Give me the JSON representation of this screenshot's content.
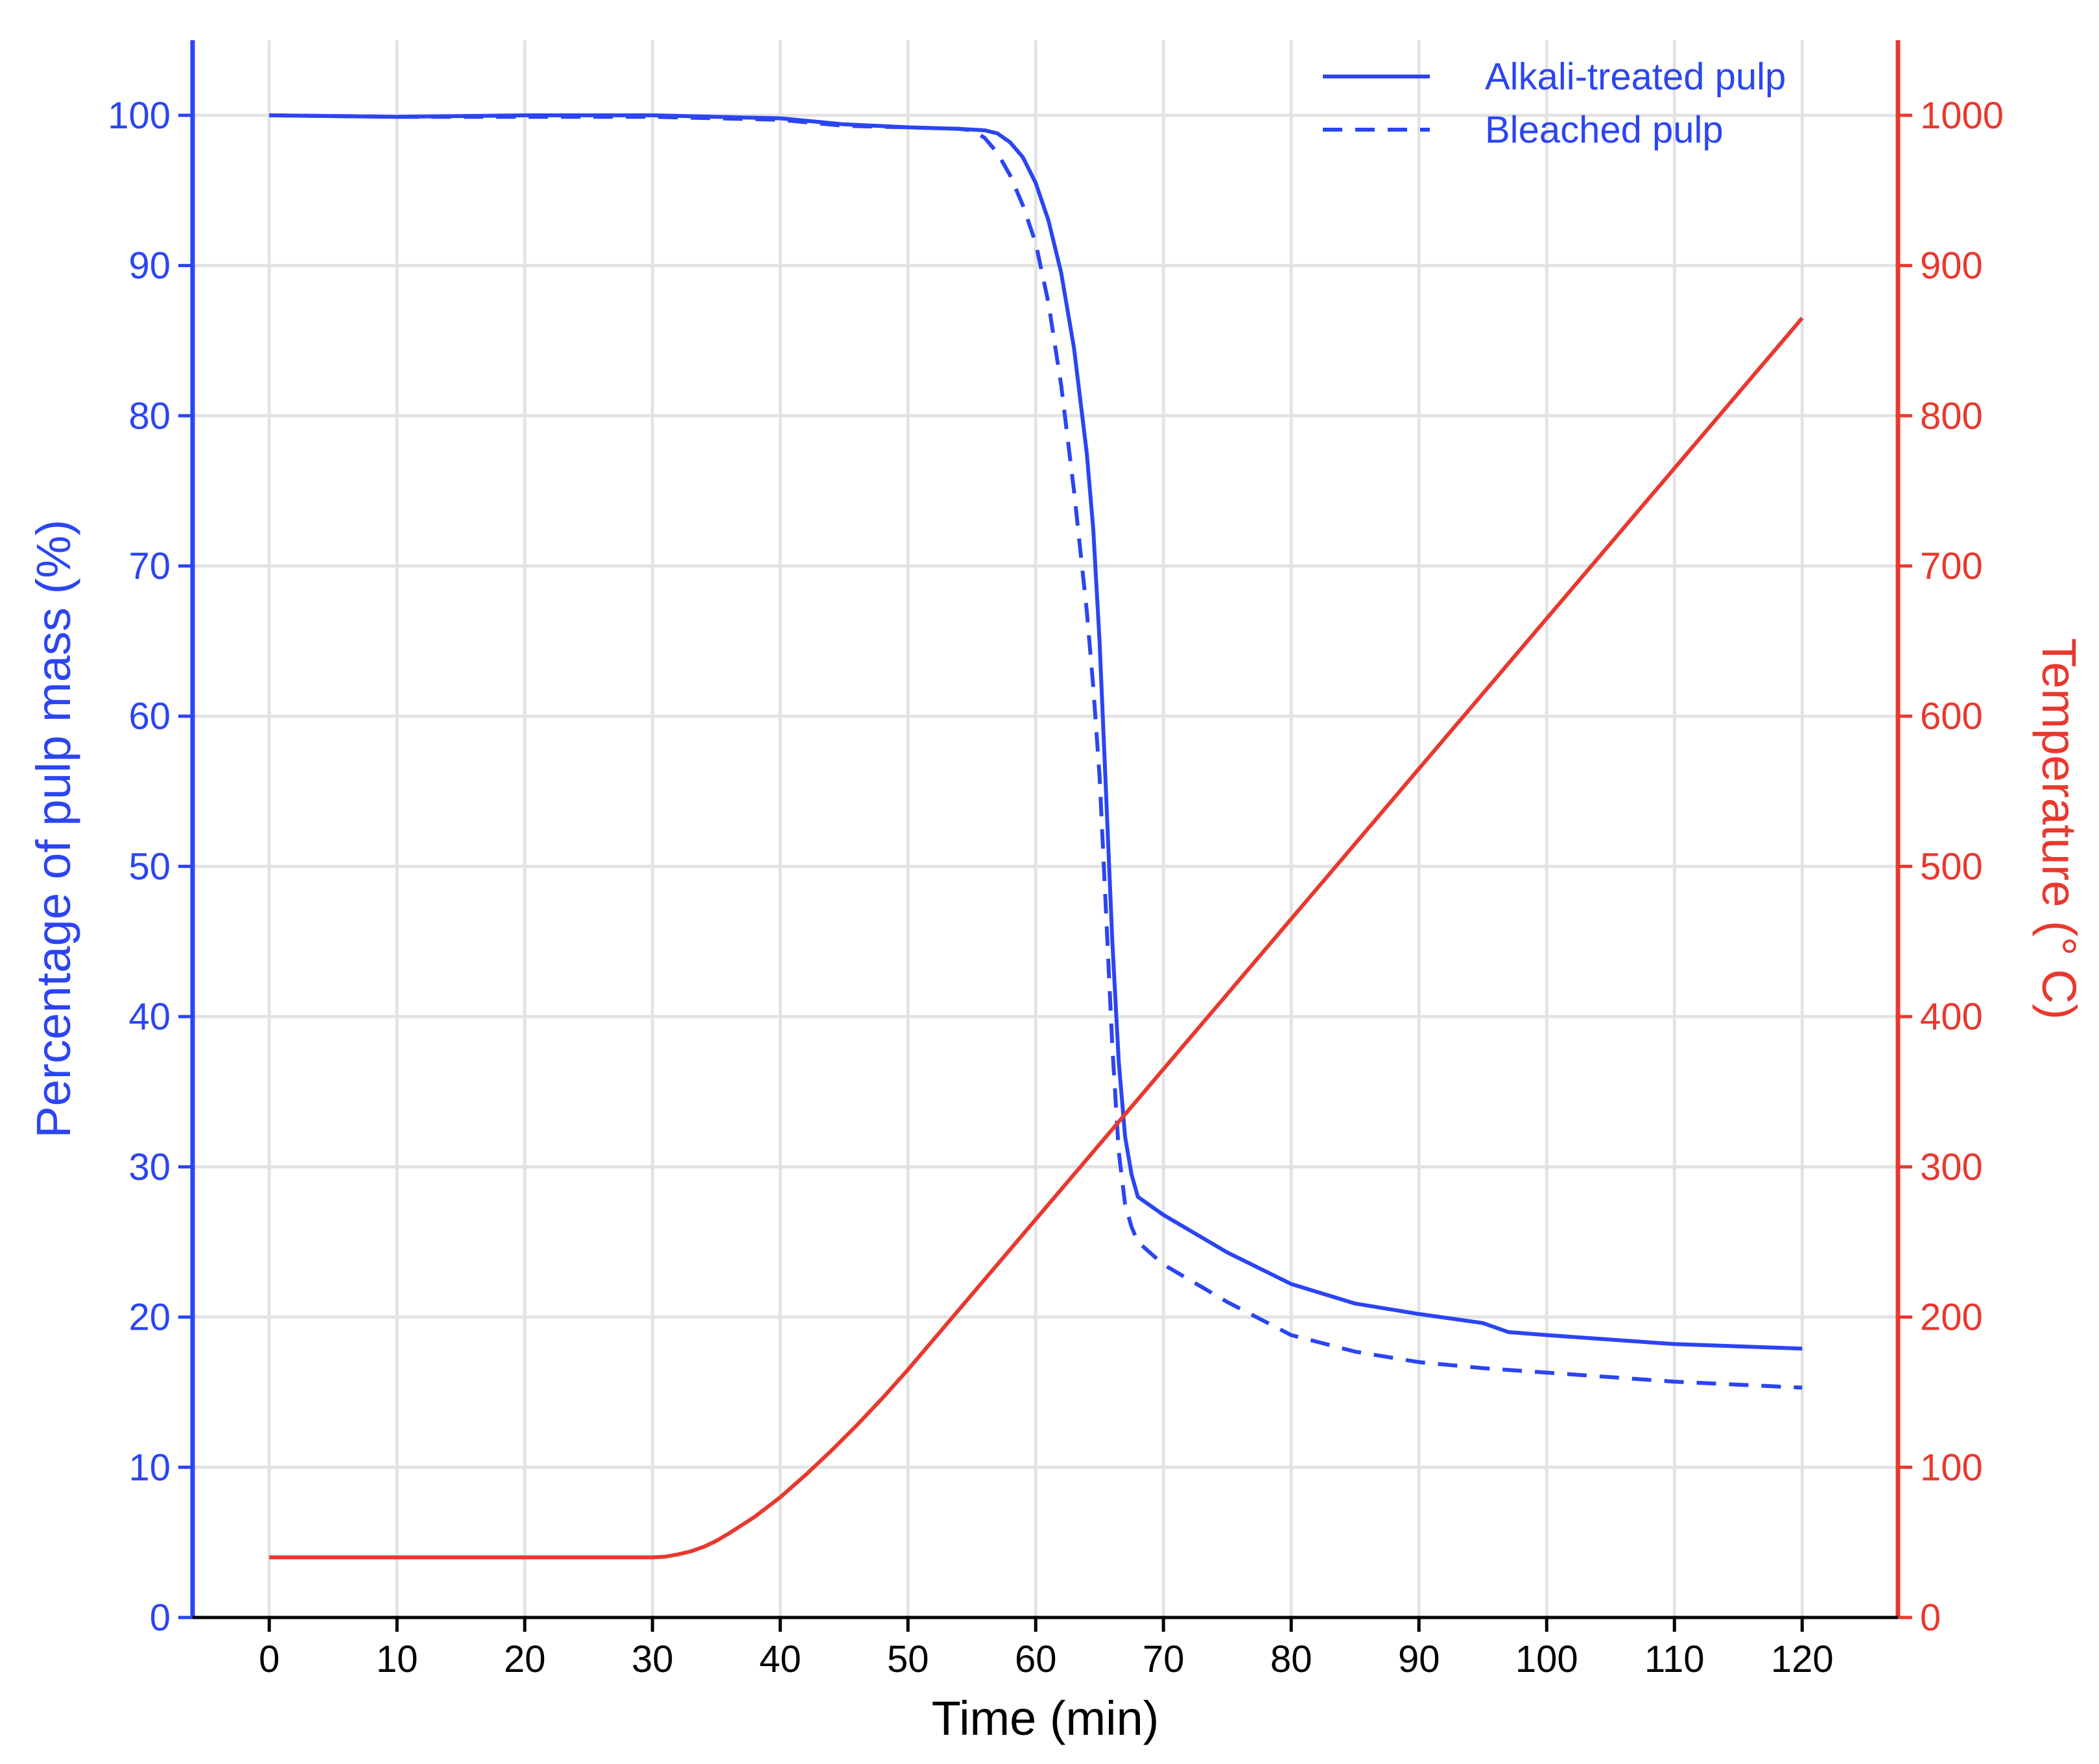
{
  "chart_data": {
    "type": "line",
    "xlabel": "Time (min)",
    "ylabel_left": "Percentage of pulp mass (%)",
    "ylabel_right": "Temperature (° C)",
    "xlim": [
      -6,
      127.5
    ],
    "ylim_left": [
      0,
      105
    ],
    "ylim_right": [
      0,
      1050
    ],
    "x_ticks": [
      0,
      10,
      20,
      30,
      40,
      50,
      60,
      70,
      80,
      90,
      100,
      110,
      120
    ],
    "y_left_ticks": [
      0,
      10,
      20,
      30,
      40,
      50,
      60,
      70,
      80,
      90,
      100
    ],
    "y_right_ticks": [
      0,
      100,
      200,
      300,
      400,
      500,
      600,
      700,
      800,
      900,
      1000
    ],
    "x_tick_labels": [
      "0",
      "10",
      "20",
      "30",
      "40",
      "50",
      "60",
      "70",
      "80",
      "90",
      "100",
      "110",
      "120"
    ],
    "y_left_tick_labels": [
      "0",
      "10",
      "20",
      "30",
      "40",
      "50",
      "60",
      "70",
      "80",
      "90",
      "100"
    ],
    "y_right_tick_labels": [
      "0",
      "100",
      "200",
      "300",
      "400",
      "500",
      "600",
      "700",
      "800",
      "900",
      "1000"
    ],
    "grid": true,
    "legend_position": "top-right",
    "colors": {
      "mass": "#2b45f2",
      "temperature": "#e8392f",
      "grid": "#e3e3e3",
      "axis": "#000000"
    },
    "series": [
      {
        "name": "Alkali-treated pulp",
        "axis": "left",
        "style": "solid",
        "x": [
          0,
          10,
          20,
          30,
          40,
          45,
          50,
          54,
          56,
          57,
          58,
          59,
          60,
          61,
          62,
          63,
          64,
          64.5,
          65,
          65.5,
          66,
          66.5,
          67,
          67.5,
          68,
          70,
          75,
          80,
          85,
          90,
          95,
          97,
          100,
          110,
          120
        ],
        "y": [
          100,
          99.9,
          100,
          100,
          99.8,
          99.4,
          99.2,
          99.1,
          99,
          98.8,
          98.2,
          97.2,
          95.5,
          93,
          89.5,
          84.5,
          77.5,
          72.5,
          65,
          55,
          45,
          37,
          32,
          29.5,
          28,
          26.8,
          24.3,
          22.2,
          20.9,
          20.2,
          19.6,
          19,
          18.8,
          18.2,
          17.9
        ]
      },
      {
        "name": "Bleached pulp",
        "axis": "left",
        "style": "dashed",
        "x": [
          0,
          10,
          20,
          30,
          40,
          45,
          50,
          54,
          55,
          56,
          57,
          58,
          59,
          60,
          61,
          62,
          63,
          64,
          64.5,
          65,
          65.5,
          66,
          66.5,
          67,
          67.5,
          68,
          70,
          75,
          80,
          85,
          90,
          95,
          100,
          110,
          120
        ],
        "y": [
          100,
          99.9,
          99.9,
          99.9,
          99.7,
          99.3,
          99.2,
          99.1,
          99,
          98.5,
          97.5,
          96,
          94,
          91.5,
          87.5,
          82,
          75,
          67,
          62,
          56,
          47,
          38,
          31,
          27.5,
          26,
          25,
          23.5,
          21,
          18.8,
          17.7,
          17,
          16.6,
          16.3,
          15.7,
          15.3
        ]
      },
      {
        "name": "Temperature",
        "axis": "right",
        "style": "solid",
        "x": [
          0,
          10,
          20,
          30,
          31,
          32,
          33,
          34,
          35,
          36,
          38,
          40,
          42,
          44,
          46,
          48,
          50,
          60,
          67,
          70,
          80,
          90,
          100,
          110,
          120
        ],
        "y": [
          40,
          40,
          40,
          40,
          40.5,
          42,
          44,
          47,
          51,
          56,
          67,
          80,
          95,
          111,
          128,
          146,
          165,
          265,
          335,
          365,
          465,
          565,
          665,
          765,
          865
        ]
      }
    ]
  }
}
